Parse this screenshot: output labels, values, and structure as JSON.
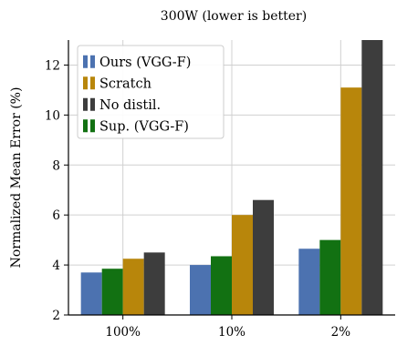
{
  "chart_data": {
    "type": "bar",
    "title": "300W (lower is better)",
    "xlabel": "",
    "ylabel": "Normalized Mean Error (%)",
    "categories": [
      "100%",
      "10%",
      "2%"
    ],
    "ylim": [
      2,
      13
    ],
    "yticks": [
      2,
      4,
      6,
      8,
      10,
      12
    ],
    "grid": true,
    "legend_position": "top-left",
    "series": [
      {
        "name": "Ours (VGG-F)",
        "color": "#4c72b0",
        "values": [
          3.7,
          4.0,
          4.65
        ]
      },
      {
        "name": "Sup. (VGG-F)",
        "color": "#127112",
        "values": [
          3.85,
          4.35,
          5.0
        ]
      },
      {
        "name": "Scratch",
        "color": "#b8860b",
        "values": [
          4.25,
          6.0,
          11.1
        ]
      },
      {
        "name": "No distil.",
        "color": "#3d3d3d",
        "values": [
          4.5,
          6.6,
          13.0
        ]
      }
    ],
    "legend_order": [
      0,
      2,
      3,
      1
    ]
  }
}
